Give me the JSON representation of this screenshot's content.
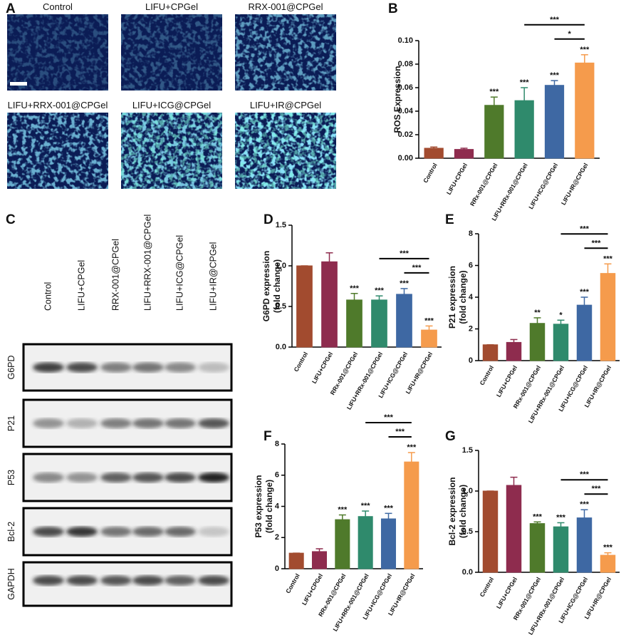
{
  "panel_a": {
    "letter": "A",
    "labels": [
      "Control",
      "LIFU+CPGel",
      "RRX-001@CPGel",
      "LIFU+RRX-001@CPGel",
      "LIFU+ICG@CPGel",
      "LIFU+IR@CPGel"
    ]
  },
  "panel_c": {
    "letter": "C",
    "lanes": [
      "Control",
      "LIFU+CPGel",
      "RRX-001@CPGel",
      "LIFU+RRX-001@CPGel",
      "LIFU+ICG@CPGel",
      "LIFU+IR@CPGel"
    ],
    "proteins": [
      "G6PD",
      "P21",
      "P53",
      "Bcl-2",
      "GAPDH"
    ]
  },
  "chart_data": [
    {
      "type": "bar",
      "panel": "B",
      "ylabel": [
        "ROS Expression"
      ],
      "categories": [
        "Control",
        "LIFU+CPGel",
        "RRx-001@CPGel",
        "LIFU+RRx-001@CPGel",
        "LIFU+ICG@CPGel",
        "LIFU+IR@CPGel"
      ],
      "values": [
        0.0085,
        0.0075,
        0.045,
        0.049,
        0.062,
        0.081
      ],
      "errors": [
        0.001,
        0.001,
        0.007,
        0.011,
        0.004,
        0.007
      ],
      "colors": [
        "#a24b2f",
        "#8e2c4e",
        "#4f7a2b",
        "#2f8a6c",
        "#3e68a3",
        "#f59b4c"
      ],
      "annotations": [
        null,
        null,
        "***",
        "***",
        "***",
        "***"
      ],
      "comparisons": [
        {
          "from": 3,
          "to": 5,
          "label": "***"
        },
        {
          "from": 4,
          "to": 5,
          "label": "*"
        }
      ],
      "ylim": [
        0,
        0.1
      ],
      "yticks": [
        {
          "value": 0,
          "label": "0.00"
        },
        {
          "value": 0.02,
          "label": "0.02"
        },
        {
          "value": 0.04,
          "label": "0.04"
        },
        {
          "value": 0.06,
          "label": "0.06"
        },
        {
          "value": 0.08,
          "label": "0.08"
        },
        {
          "value": 0.1,
          "label": "0.10"
        }
      ]
    },
    {
      "type": "bar",
      "panel": "D",
      "ylabel": [
        "G6PD expression",
        "(fold change)"
      ],
      "categories": [
        "Control",
        "LIFU+CPGel",
        "RRx-001@CPGel",
        "LIFU+RRx-001@CPGel",
        "LIFU+ICG@CPGel",
        "LIFU+IR@CPGel"
      ],
      "values": [
        1.0,
        1.05,
        0.58,
        0.58,
        0.65,
        0.21
      ],
      "errors": [
        0,
        0.11,
        0.08,
        0.05,
        0.07,
        0.05
      ],
      "colors": [
        "#a24b2f",
        "#8e2c4e",
        "#4f7a2b",
        "#2f8a6c",
        "#3e68a3",
        "#f59b4c"
      ],
      "annotations": [
        null,
        null,
        "***",
        "***",
        "***",
        "***"
      ],
      "comparisons": [
        {
          "from": 3,
          "to": 5,
          "label": "***"
        },
        {
          "from": 4,
          "to": 5,
          "label": "***"
        }
      ],
      "ylim": [
        0,
        1.5
      ],
      "yticks": [
        {
          "value": 0,
          "label": "0.0"
        },
        {
          "value": 0.5,
          "label": "0.5"
        },
        {
          "value": 1,
          "label": "1.0"
        },
        {
          "value": 1.5,
          "label": "1.5"
        }
      ]
    },
    {
      "type": "bar",
      "panel": "E",
      "ylabel": [
        "P21 expression",
        "(fold change)"
      ],
      "categories": [
        "Control",
        "LIFU+CPGel",
        "RRx-001@CPGel",
        "LIFU+RRx-001@CPGel",
        "LIFU+ICG@CPGel",
        "LIFU+IR@CPGel"
      ],
      "values": [
        1.0,
        1.15,
        2.35,
        2.3,
        3.5,
        5.5
      ],
      "errors": [
        0,
        0.18,
        0.35,
        0.25,
        0.5,
        0.6
      ],
      "colors": [
        "#a24b2f",
        "#8e2c4e",
        "#4f7a2b",
        "#2f8a6c",
        "#3e68a3",
        "#f59b4c"
      ],
      "annotations": [
        null,
        null,
        "**",
        "*",
        "***",
        "***"
      ],
      "comparisons": [
        {
          "from": 3,
          "to": 5,
          "label": "***"
        },
        {
          "from": 4,
          "to": 5,
          "label": "***"
        }
      ],
      "ylim": [
        0,
        8
      ],
      "yticks": [
        0,
        2,
        4,
        6,
        8
      ]
    },
    {
      "type": "bar",
      "panel": "F",
      "ylabel": [
        "P53 expression",
        "(fold change)"
      ],
      "categories": [
        "Control",
        "LIFU+CPGel",
        "RRx-001@CPGel",
        "LIFU+RRx-001@CPGel",
        "LIFU+ICG@CPGel",
        "LIFU+IR@CPGel"
      ],
      "values": [
        1.0,
        1.1,
        3.15,
        3.35,
        3.2,
        6.85
      ],
      "errors": [
        0,
        0.18,
        0.3,
        0.35,
        0.35,
        0.6
      ],
      "colors": [
        "#a24b2f",
        "#8e2c4e",
        "#4f7a2b",
        "#2f8a6c",
        "#3e68a3",
        "#f59b4c"
      ],
      "annotations": [
        null,
        null,
        "***",
        "***",
        "***",
        "***"
      ],
      "comparisons": [
        {
          "from": 3,
          "to": 5,
          "label": "***"
        },
        {
          "from": 4,
          "to": 5,
          "label": "***"
        }
      ],
      "ylim": [
        0,
        8
      ],
      "yticks": [
        0,
        2,
        4,
        6,
        8
      ]
    },
    {
      "type": "bar",
      "panel": "G",
      "ylabel": [
        "Bcl-2 expression",
        "(fold change)"
      ],
      "categories": [
        "Control",
        "LIFU+CPGel",
        "RRx-001@CPGel",
        "LIFU+RRx-001@CPGel",
        "LIFU+ICG@CPGel",
        "LIFU+IR@CPGel"
      ],
      "values": [
        1.0,
        1.07,
        0.6,
        0.56,
        0.67,
        0.21
      ],
      "errors": [
        0,
        0.1,
        0.02,
        0.05,
        0.1,
        0.03
      ],
      "colors": [
        "#a24b2f",
        "#8e2c4e",
        "#4f7a2b",
        "#2f8a6c",
        "#3e68a3",
        "#f59b4c"
      ],
      "annotations": [
        null,
        null,
        "***",
        "***",
        "***",
        "***"
      ],
      "comparisons": [
        {
          "from": 3,
          "to": 5,
          "label": "***"
        },
        {
          "from": 4,
          "to": 5,
          "label": "***"
        }
      ],
      "ylim": [
        0,
        1.5
      ],
      "yticks": [
        {
          "value": 0,
          "label": "0.0"
        },
        {
          "value": 0.5,
          "label": "0.5"
        },
        {
          "value": 1,
          "label": "1.0"
        },
        {
          "value": 1.5,
          "label": "1.5"
        }
      ]
    }
  ]
}
